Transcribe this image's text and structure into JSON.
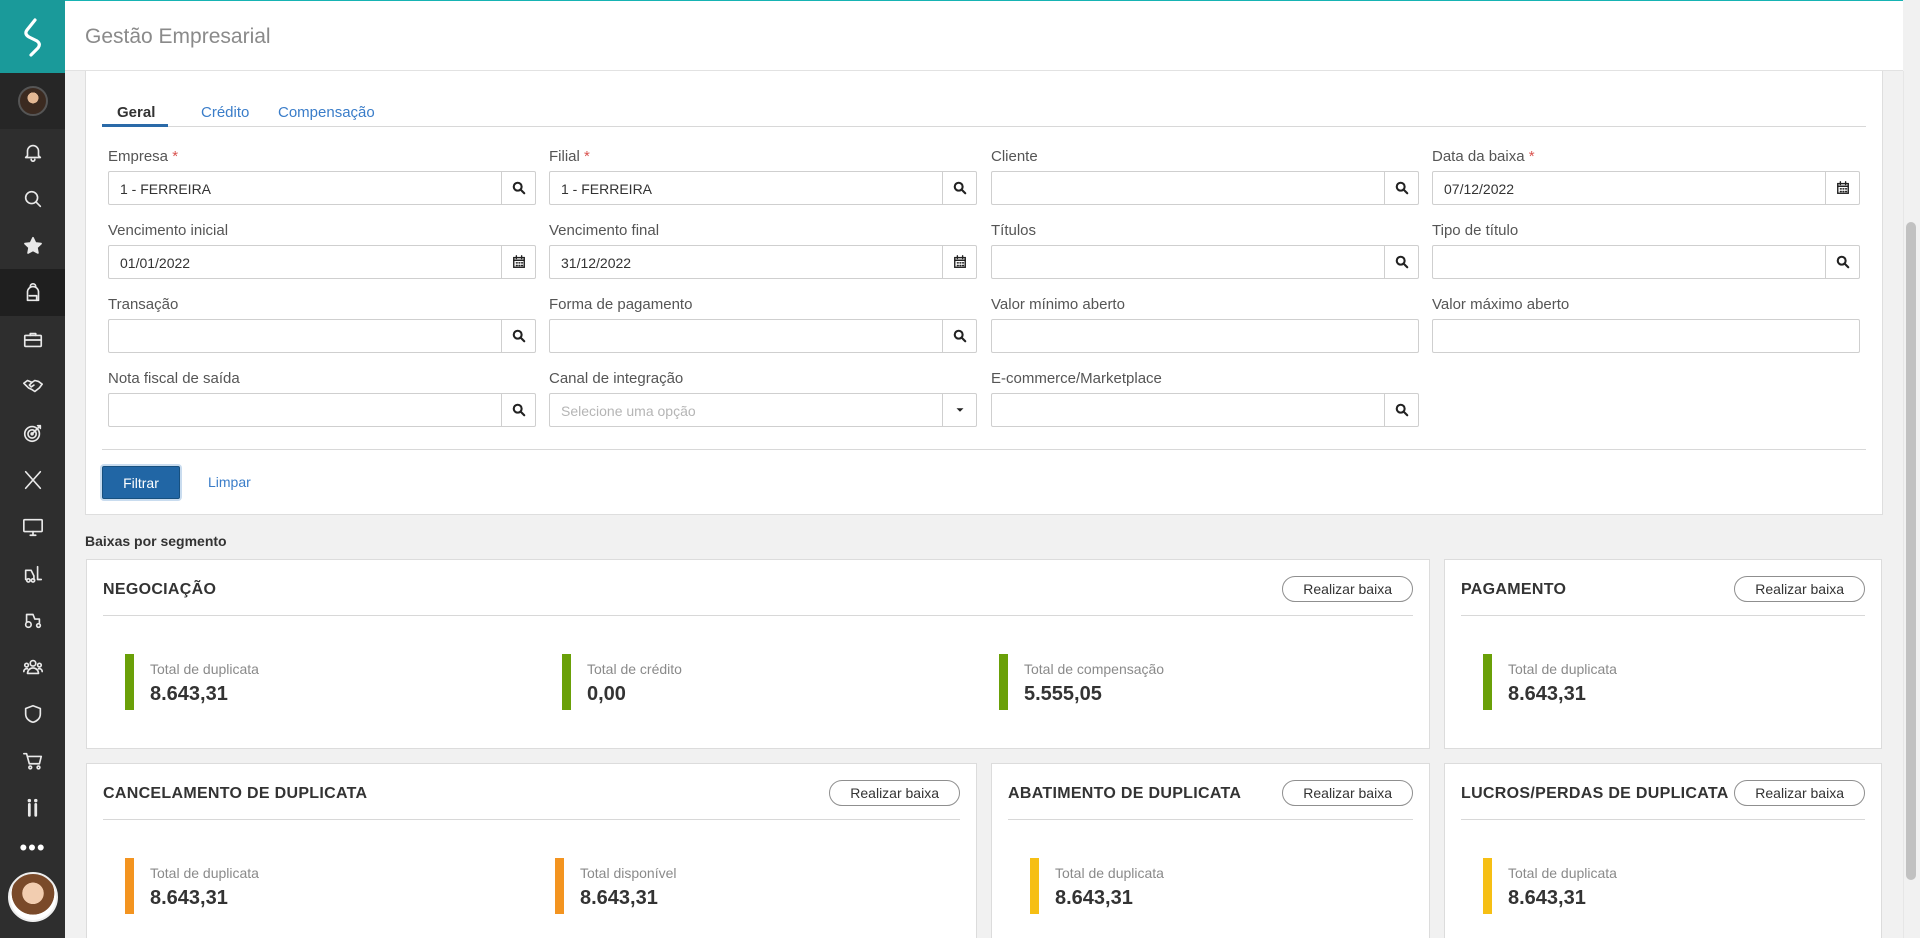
{
  "app": {
    "title": "Gestão Empresarial"
  },
  "colors": {
    "accent": "#1a9a9a",
    "primary": "#2166a5",
    "green": "#6aa008",
    "orange": "#f39420",
    "yellow": "#f6bf14"
  },
  "sidebar": {
    "items": [
      {
        "icon": "bell-icon"
      },
      {
        "icon": "search-icon"
      },
      {
        "icon": "star-icon"
      },
      {
        "icon": "backpack-icon"
      },
      {
        "icon": "briefcase-icon"
      },
      {
        "icon": "handshake-icon"
      },
      {
        "icon": "target-icon"
      },
      {
        "icon": "x-icon"
      },
      {
        "icon": "monitor-icon"
      },
      {
        "icon": "forklift-icon"
      },
      {
        "icon": "tractor-icon"
      },
      {
        "icon": "people-icon"
      },
      {
        "icon": "shield-icon"
      },
      {
        "icon": "cart-icon"
      },
      {
        "icon": "pause-bars-icon"
      }
    ],
    "more_label": "•••"
  },
  "tabs": {
    "geral": "Geral",
    "credito": "Crédito",
    "compensacao": "Compensação"
  },
  "form": {
    "empresa": {
      "label": "Empresa",
      "value": "1 - FERREIRA"
    },
    "filial": {
      "label": "Filial",
      "value": "1 - FERREIRA"
    },
    "cliente": {
      "label": "Cliente",
      "value": ""
    },
    "data_baixa": {
      "label": "Data da baixa",
      "value": "07/12/2022"
    },
    "venc_inicial": {
      "label": "Vencimento inicial",
      "value": "01/01/2022"
    },
    "venc_final": {
      "label": "Vencimento final",
      "value": "31/12/2022"
    },
    "titulos": {
      "label": "Títulos",
      "value": ""
    },
    "tipo_titulo": {
      "label": "Tipo de título",
      "value": ""
    },
    "transacao": {
      "label": "Transação",
      "value": ""
    },
    "forma_pagamento": {
      "label": "Forma de pagamento",
      "value": ""
    },
    "valor_min": {
      "label": "Valor mínimo aberto",
      "value": ""
    },
    "valor_max": {
      "label": "Valor máximo aberto",
      "value": ""
    },
    "nota_fiscal": {
      "label": "Nota fiscal de saída",
      "value": ""
    },
    "canal": {
      "label": "Canal de integração",
      "placeholder": "Selecione uma opção"
    },
    "ecommerce": {
      "label": "E-commerce/Marketplace",
      "value": ""
    },
    "required_mark": "*"
  },
  "actions": {
    "filtrar": "Filtrar",
    "limpar": "Limpar"
  },
  "segments": {
    "title": "Baixas por segmento",
    "button_label": "Realizar baixa",
    "negociacao": {
      "title": "NEGOCIAÇÃO",
      "stats": [
        {
          "label": "Total de duplicata",
          "value": "8.643,31"
        },
        {
          "label": "Total de crédito",
          "value": "0,00"
        },
        {
          "label": "Total de compensação",
          "value": "5.555,05"
        }
      ]
    },
    "pagamento": {
      "title": "PAGAMENTO",
      "stats": [
        {
          "label": "Total de duplicata",
          "value": "8.643,31"
        }
      ]
    },
    "cancelamento": {
      "title": "CANCELAMENTO DE DUPLICATA",
      "stats": [
        {
          "label": "Total de duplicata",
          "value": "8.643,31"
        },
        {
          "label": "Total disponível",
          "value": "8.643,31"
        }
      ]
    },
    "abatimento": {
      "title": "ABATIMENTO DE DUPLICATA",
      "stats": [
        {
          "label": "Total de duplicata",
          "value": "8.643,31"
        }
      ]
    },
    "lucros": {
      "title": "LUCROS/PERDAS DE DUPLICATA",
      "stats": [
        {
          "label": "Total de duplicata",
          "value": "8.643,31"
        }
      ]
    }
  }
}
